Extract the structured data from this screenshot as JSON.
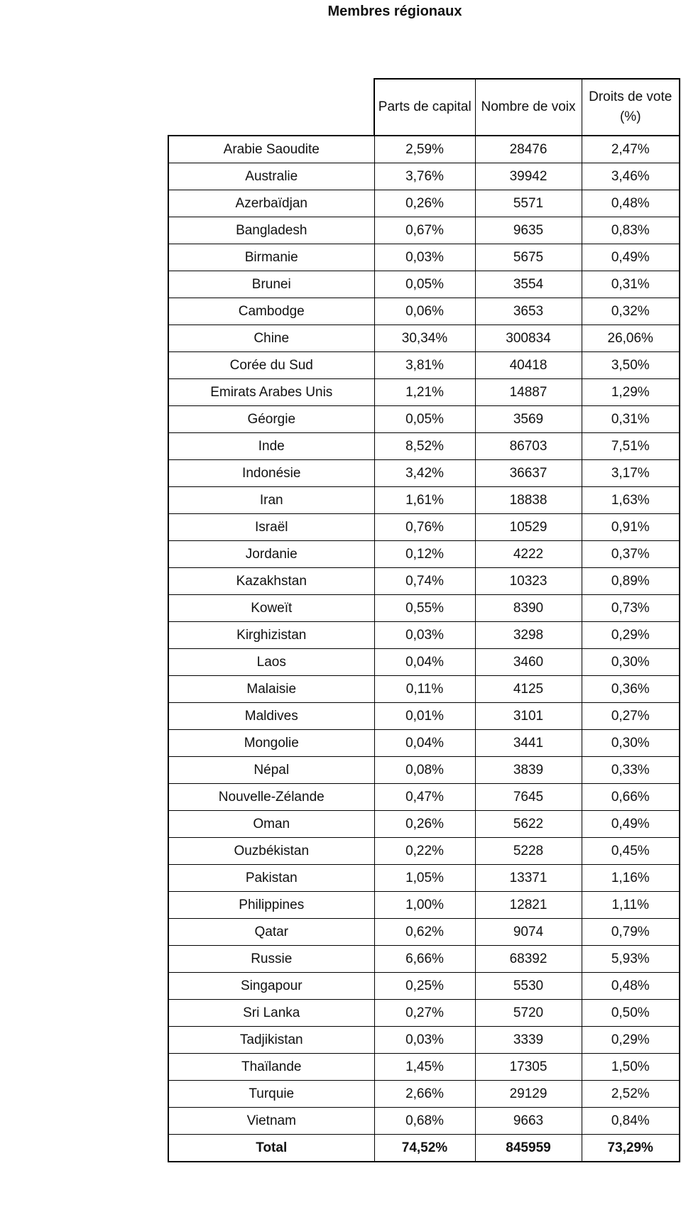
{
  "page": {
    "title": "Membres régionaux"
  },
  "table": {
    "header": [
      "Parts de capital",
      "Nombre de voix",
      "Droits de vote (%)"
    ],
    "rows": [
      [
        "Arabie Saoudite",
        "2,59%",
        "28476",
        "2,47%"
      ],
      [
        "Australie",
        "3,76%",
        "39942",
        "3,46%"
      ],
      [
        "Azerbaïdjan",
        "0,26%",
        "5571",
        "0,48%"
      ],
      [
        "Bangladesh",
        "0,67%",
        "9635",
        "0,83%"
      ],
      [
        "Birmanie",
        "0,03%",
        "5675",
        "0,49%"
      ],
      [
        "Brunei",
        "0,05%",
        "3554",
        "0,31%"
      ],
      [
        "Cambodge",
        "0,06%",
        "3653",
        "0,32%"
      ],
      [
        "Chine",
        "30,34%",
        "300834",
        "26,06%"
      ],
      [
        "Corée du Sud",
        "3,81%",
        "40418",
        "3,50%"
      ],
      [
        "Emirats Arabes Unis",
        "1,21%",
        "14887",
        "1,29%"
      ],
      [
        "Géorgie",
        "0,05%",
        "3569",
        "0,31%"
      ],
      [
        "Inde",
        "8,52%",
        "86703",
        "7,51%"
      ],
      [
        "Indonésie",
        "3,42%",
        "36637",
        "3,17%"
      ],
      [
        "Iran",
        "1,61%",
        "18838",
        "1,63%"
      ],
      [
        "Israël",
        "0,76%",
        "10529",
        "0,91%"
      ],
      [
        "Jordanie",
        "0,12%",
        "4222",
        "0,37%"
      ],
      [
        "Kazakhstan",
        "0,74%",
        "10323",
        "0,89%"
      ],
      [
        "Koweït",
        "0,55%",
        "8390",
        "0,73%"
      ],
      [
        "Kirghizistan",
        "0,03%",
        "3298",
        "0,29%"
      ],
      [
        "Laos",
        "0,04%",
        "3460",
        "0,30%"
      ],
      [
        "Malaisie",
        "0,11%",
        "4125",
        "0,36%"
      ],
      [
        "Maldives",
        "0,01%",
        "3101",
        "0,27%"
      ],
      [
        "Mongolie",
        "0,04%",
        "3441",
        "0,30%"
      ],
      [
        "Népal",
        "0,08%",
        "3839",
        "0,33%"
      ],
      [
        "Nouvelle-Zélande",
        "0,47%",
        "7645",
        "0,66%"
      ],
      [
        "Oman",
        "0,26%",
        "5622",
        "0,49%"
      ],
      [
        "Ouzbékistan",
        "0,22%",
        "5228",
        "0,45%"
      ],
      [
        "Pakistan",
        "1,05%",
        "13371",
        "1,16%"
      ],
      [
        "Philippines",
        "1,00%",
        "12821",
        "1,11%"
      ],
      [
        "Qatar",
        "0,62%",
        "9074",
        "0,79%"
      ],
      [
        "Russie",
        "6,66%",
        "68392",
        "5,93%"
      ],
      [
        "Singapour",
        "0,25%",
        "5530",
        "0,48%"
      ],
      [
        "Sri Lanka",
        "0,27%",
        "5720",
        "0,50%"
      ],
      [
        "Tadjikistan",
        "0,03%",
        "3339",
        "0,29%"
      ],
      [
        "Thaïlande",
        "1,45%",
        "17305",
        "1,50%"
      ],
      [
        "Turquie",
        "2,66%",
        "29129",
        "2,52%"
      ],
      [
        "Vietnam",
        "0,68%",
        "9663",
        "0,84%"
      ]
    ],
    "total": {
      "label": "Total",
      "parts": "74,52%",
      "voix": "845959",
      "vote": "73,29%"
    }
  }
}
